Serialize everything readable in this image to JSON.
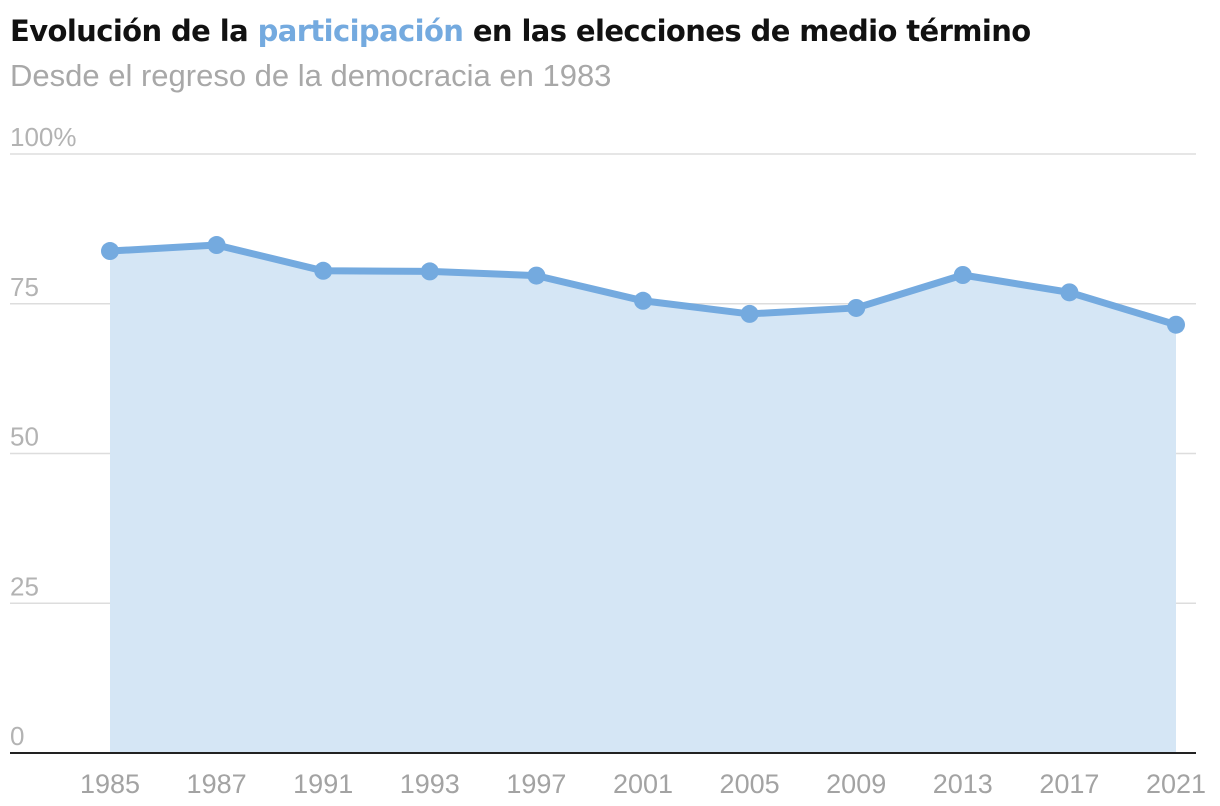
{
  "title": {
    "before": "Evolución de la",
    "highlight": "participación",
    "after": "en las elecciones de medio término"
  },
  "subtitle": "Desde el regreso de la democracia en 1983",
  "colors": {
    "accent": "#74aadf",
    "area": "#d5e6f5",
    "grid": "#dddddd",
    "axis": "#222222",
    "label": "#b3b3b3"
  },
  "chart_data": {
    "type": "area",
    "title": "Evolución de la participación en las elecciones de medio término",
    "subtitle": "Desde el regreso de la democracia en 1983",
    "xlabel": "",
    "ylabel": "",
    "ylim": [
      0,
      100
    ],
    "yticks": [
      0,
      25,
      50,
      75,
      100
    ],
    "ytick_labels": [
      "0",
      "25",
      "50",
      "75",
      "100%"
    ],
    "grid": true,
    "categories": [
      "1985",
      "1987",
      "1991",
      "1993",
      "1997",
      "2001",
      "2005",
      "2009",
      "2013",
      "2017",
      "2021"
    ],
    "series": [
      {
        "name": "Participación",
        "values": [
          83.8,
          84.8,
          80.5,
          80.4,
          79.7,
          75.5,
          73.3,
          74.3,
          79.8,
          76.9,
          71.5
        ]
      }
    ]
  }
}
